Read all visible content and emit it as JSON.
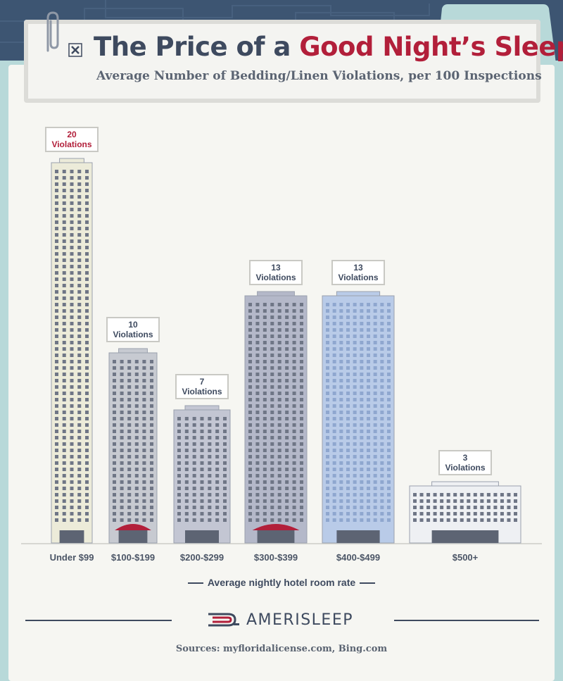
{
  "header": {
    "title_main": "The Price of a ",
    "title_accent": "Good Night’s Sleep",
    "subtitle": "Average Number of Bedding/Linen Violations, per 100 Inspections"
  },
  "chart_data": {
    "type": "bar",
    "title": "The Price of a Good Night’s Sleep",
    "subtitle": "Average Number of Bedding/Linen Violations, per 100 Inspections",
    "xlabel": "Average nightly hotel room rate",
    "ylabel": "",
    "categories": [
      "Under $99",
      "$100-$199",
      "$200-$299",
      "$300-$399",
      "$400-$499",
      "$500+"
    ],
    "values": [
      20,
      10,
      7,
      13,
      13,
      3
    ],
    "value_labels": [
      [
        "20",
        "Violations"
      ],
      [
        "10",
        "Violations"
      ],
      [
        "7",
        "Violations"
      ],
      [
        "13",
        "Violations"
      ],
      [
        "13",
        "Violations"
      ],
      [
        "3",
        "Violations"
      ]
    ],
    "highlight_color": "#b21f3a",
    "label_color": "#3e4a5f",
    "building_colors": [
      "#ecebd9",
      "#c7cad1",
      "#c3c6d3",
      "#b4b8c9",
      "#b9cbe8",
      "#eef0f3"
    ]
  },
  "footer": {
    "brand": "AMERISLEEP",
    "sources": "Sources: myfloridalicense.com, Bing.com"
  }
}
